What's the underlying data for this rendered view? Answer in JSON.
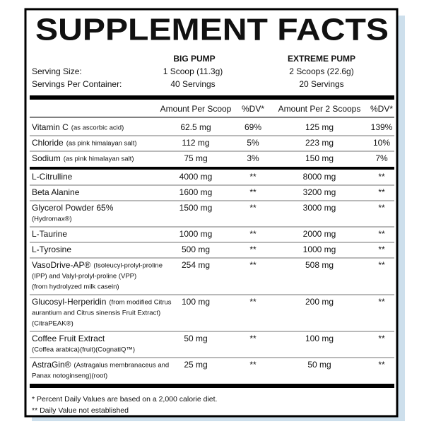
{
  "header": {
    "title": "SUPPLEMENT FACTS"
  },
  "products": [
    "BIG PUMP",
    "EXTREME PUMP"
  ],
  "serving": {
    "rows": [
      [
        "Serving Size:",
        "1 Scoop (11.3g)",
        "2 Scoops (22.6g)"
      ],
      [
        "Servings Per Container:",
        "40 Servings",
        "20 Servings"
      ]
    ]
  },
  "columns": [
    "Amount Per Scoop",
    "%DV*",
    "Amount Per 2 Scoops",
    "%DV*"
  ],
  "table": {
    "sections": [
      {
        "rows": [
          {
            "lines": [
              [
                "Vitamin C",
                "(as ascorbic acid)"
              ]
            ],
            "cells": [
              "62.5 mg",
              "69%",
              "125 mg",
              "139%"
            ]
          },
          {
            "lines": [
              [
                "Chloride",
                "(as pink himalayan salt)"
              ]
            ],
            "cells": [
              "112 mg",
              "5%",
              "223 mg",
              "10%"
            ]
          },
          {
            "lines": [
              [
                "Sodium",
                "(as pink himalayan salt)"
              ]
            ],
            "cells": [
              "75 mg",
              "3%",
              "150 mg",
              "7%"
            ]
          }
        ]
      },
      {
        "rows": [
          {
            "lines": [
              [
                "L-Citrulline"
              ]
            ],
            "cells": [
              "4000 mg",
              "**",
              "8000 mg",
              "**"
            ]
          },
          {
            "lines": [
              [
                "Beta Alanine"
              ]
            ],
            "cells": [
              "1600 mg",
              "**",
              "3200 mg",
              "**"
            ]
          },
          {
            "lines": [
              [
                "Glycerol Powder 65%"
              ],
              [
                "(Hydromax®)"
              ]
            ],
            "cells": [
              "1500 mg",
              "**",
              "3000 mg",
              "**"
            ]
          },
          {
            "lines": [
              [
                "L-Taurine"
              ]
            ],
            "cells": [
              "1000 mg",
              "**",
              "2000 mg",
              "**"
            ]
          },
          {
            "lines": [
              [
                "L-Tyrosine"
              ]
            ],
            "cells": [
              "500 mg",
              "**",
              "1000 mg",
              "**"
            ]
          },
          {
            "lines": [
              [
                "VasoDrive-AP®",
                "(Isoleucyl-prolyl-proline"
              ],
              [
                "(IPP) and Valyl-prolyl-proline (VPP)"
              ],
              [
                "(from hydrolyzed milk casein)"
              ]
            ],
            "cells": [
              "254 mg",
              "**",
              "508 mg",
              "**"
            ]
          },
          {
            "lines": [
              [
                "Glucosyl-Herperidin",
                "(from modified Citrus"
              ],
              [
                "aurantium and Citrus sinensis Fruit Extract)"
              ],
              [
                "(CitraPEAK®)"
              ]
            ],
            "cells": [
              "100 mg",
              "**",
              "200 mg",
              "**"
            ]
          },
          {
            "lines": [
              [
                "Coffee Fruit Extract"
              ],
              [
                "(Coffea arabica)(fruit)(CognatiQ™)"
              ]
            ],
            "cells": [
              "50 mg",
              "**",
              "100 mg",
              "**"
            ]
          },
          {
            "lines": [
              [
                "AstraGin®",
                "(Astragalus membranaceus and"
              ],
              [
                "Panax notoginseng)(root)"
              ]
            ],
            "cells": [
              "25 mg",
              "**",
              "50 mg",
              "**"
            ]
          }
        ]
      }
    ]
  },
  "footnotes": [
    "* Percent Daily Values are based on a 2,000 calorie diet.",
    "** Daily Value not established"
  ]
}
